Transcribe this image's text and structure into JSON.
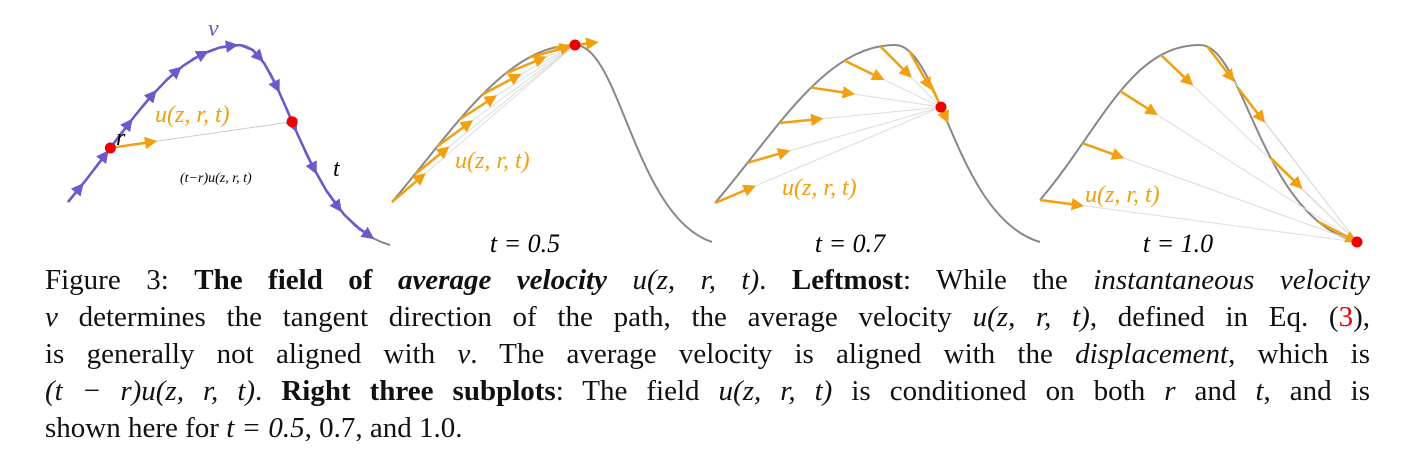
{
  "figure": {
    "panels": [
      {
        "velocity": "v",
        "average": "u(z, r, t)",
        "start": "r",
        "end": "t",
        "displacement": "(t−r)u(z, r, t)"
      },
      {
        "average": "u(z, r, t)",
        "time": "t = 0.5"
      },
      {
        "average": "u(z, r, t)",
        "time": "t = 0.7"
      },
      {
        "average": "u(z, r, t)",
        "time": "t = 1.0"
      }
    ],
    "caption": {
      "lines": [
        [
          "Figure 3: ",
          "The field of ",
          "average velocity",
          " ",
          "u(z, r, t)",
          ". ",
          "Leftmost",
          ": While the ",
          "instantaneous velocity"
        ],
        [
          "v",
          " determines the tangent direction of the path, the average velocity ",
          "u(z, r, t)",
          ", defined in Eq. (",
          "3",
          "),"
        ],
        [
          "is generally not aligned with ",
          "v",
          ". The average velocity is aligned with the ",
          "displacement",
          ", which is"
        ],
        [
          "(t − r)u(z, r, t)",
          ". ",
          "Right three subplots",
          ": The field ",
          "u(z, r, t)",
          " is conditioned on both ",
          "r",
          " and ",
          "t",
          ", and is"
        ],
        [
          "shown here for ",
          "t = 0.5",
          ", ",
          "0.7",
          ", and ",
          "1.0",
          "."
        ]
      ]
    }
  }
}
